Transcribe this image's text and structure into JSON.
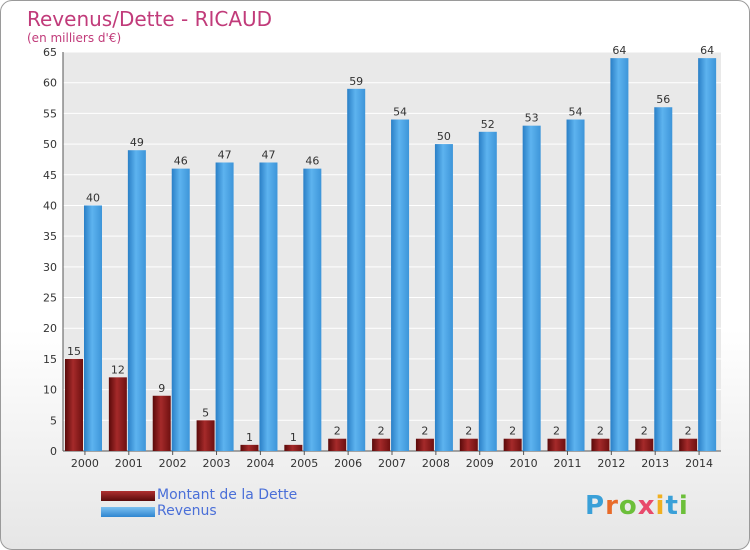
{
  "chart_data": {
    "type": "bar",
    "title": "Revenus/Dette - RICAUD",
    "subtitle": "(en milliers d'€)",
    "categories": [
      "2000",
      "2001",
      "2002",
      "2003",
      "2004",
      "2005",
      "2006",
      "2007",
      "2008",
      "2009",
      "2010",
      "2011",
      "2012",
      "2013",
      "2014"
    ],
    "series": [
      {
        "name": "Montant de la Dette",
        "color": "#8b1a1a",
        "values": [
          15,
          12,
          9,
          5,
          1,
          1,
          2,
          2,
          2,
          2,
          2,
          2,
          2,
          2,
          2
        ]
      },
      {
        "name": "Revenus",
        "color": "#4aa3e8",
        "values": [
          40,
          49,
          46,
          47,
          47,
          46,
          59,
          54,
          50,
          52,
          53,
          54,
          64,
          56,
          64
        ]
      }
    ],
    "ylim": [
      0,
      65
    ],
    "yticks": [
      0,
      5,
      10,
      15,
      20,
      25,
      30,
      35,
      40,
      45,
      50,
      55,
      60,
      65
    ],
    "grid": true,
    "legend": "bottom-left"
  },
  "logo": {
    "letters": [
      "P",
      "r",
      "o",
      "x",
      "i",
      "t",
      "i"
    ],
    "colors": [
      "#3aa0d8",
      "#e86b2a",
      "#6cbf3a",
      "#e84a6b",
      "#f0b020",
      "#3aa0d8",
      "#6cbf3a"
    ]
  }
}
